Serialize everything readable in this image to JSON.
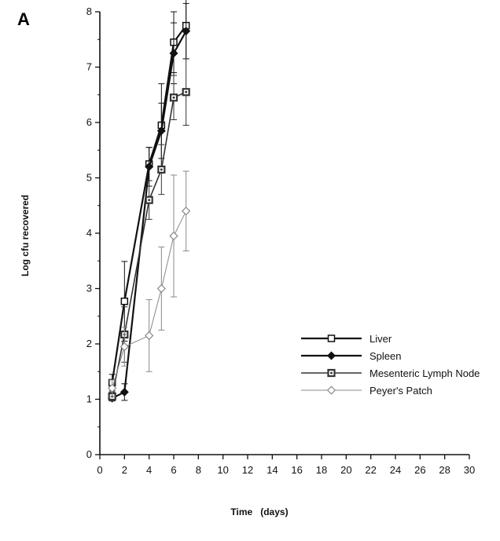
{
  "chart_data": {
    "type": "line",
    "panel_label": "A",
    "xlabel": "Time   (days)",
    "ylabel": "Log  cfu  recovered",
    "xlim": [
      0,
      30
    ],
    "ylim": [
      0,
      8
    ],
    "xticks": [
      0,
      2,
      4,
      6,
      8,
      10,
      12,
      14,
      16,
      18,
      20,
      22,
      24,
      26,
      28,
      30
    ],
    "yticks": [
      0,
      1,
      2,
      3,
      4,
      5,
      6,
      7,
      8
    ],
    "grid": false,
    "legend_position": "lower-right",
    "series": [
      {
        "name": "Liver",
        "marker": "open-square",
        "color": "#111111",
        "x": [
          1,
          2,
          4,
          5,
          6,
          7
        ],
        "y": [
          1.3,
          2.77,
          5.25,
          5.95,
          7.45,
          7.75
        ],
        "err": [
          0.15,
          0.72,
          0.3,
          0.75,
          0.55,
          0.6
        ]
      },
      {
        "name": "Spleen",
        "marker": "filled-diamond",
        "color": "#111111",
        "x": [
          1,
          2,
          4,
          5,
          6,
          7
        ],
        "y": [
          1.02,
          1.13,
          5.2,
          5.85,
          7.25,
          7.65
        ],
        "err": [
          0.05,
          0.15,
          0.35,
          0.5,
          0.55,
          0.5
        ]
      },
      {
        "name": "Mesenteric Lymph Node",
        "marker": "dotted-square",
        "color": "#333333",
        "x": [
          1,
          2,
          4,
          5,
          6,
          7
        ],
        "y": [
          1.05,
          2.17,
          4.6,
          5.15,
          6.45,
          6.55
        ],
        "err": [
          0.08,
          0.5,
          0.35,
          0.45,
          0.4,
          0.6
        ]
      },
      {
        "name": "Peyer's Patch",
        "marker": "open-diamond",
        "color": "#888888",
        "x": [
          1,
          2,
          4,
          5,
          6,
          7
        ],
        "y": [
          1.2,
          1.95,
          2.15,
          3.0,
          3.95,
          4.4
        ],
        "err": [
          0.15,
          0.35,
          0.65,
          0.75,
          1.1,
          0.72
        ]
      }
    ]
  }
}
